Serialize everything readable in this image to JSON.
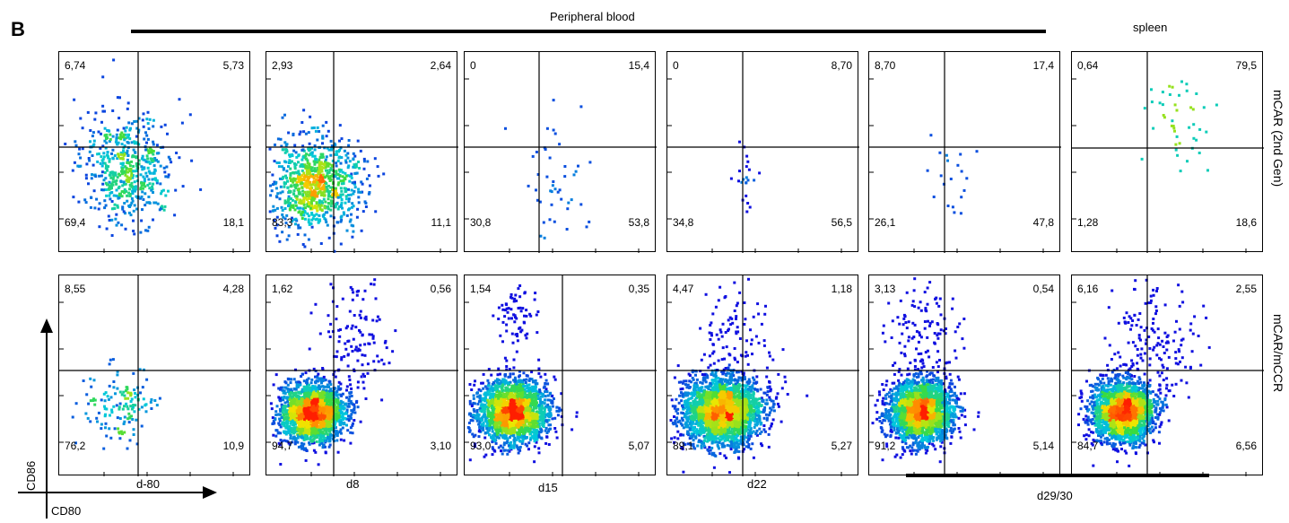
{
  "panel_letter": "B",
  "group_labels": {
    "peripheral_blood": "Peripheral blood",
    "spleen": "spleen"
  },
  "row_labels": [
    "mCAR (2nd Gen)",
    "mCAR/mCCR"
  ],
  "timepoints": [
    "d-80",
    "d8",
    "d15",
    "d22",
    "d29/30"
  ],
  "axes": {
    "y": "CD86",
    "x": "CD80"
  },
  "colors": {
    "sparse": "#1010e0",
    "mid": "#00d0d0",
    "dense": "#ff2000"
  },
  "chart_data": [
    {
      "type": "scatter",
      "row": "mCAR (2nd Gen)",
      "timepoint": "d-80",
      "quadrants": {
        "top_left": "6,74",
        "top_right": "5,73",
        "bottom_left": "69,4",
        "bottom_right": "18,1"
      }
    },
    {
      "type": "scatter",
      "row": "mCAR (2nd Gen)",
      "timepoint": "d8",
      "quadrants": {
        "top_left": "2,93",
        "top_right": "2,64",
        "bottom_left": "83,3",
        "bottom_right": "11,1"
      }
    },
    {
      "type": "scatter",
      "row": "mCAR (2nd Gen)",
      "timepoint": "d15",
      "quadrants": {
        "top_left": "0",
        "top_right": "15,4",
        "bottom_left": "30,8",
        "bottom_right": "53,8"
      }
    },
    {
      "type": "scatter",
      "row": "mCAR (2nd Gen)",
      "timepoint": "d22",
      "quadrants": {
        "top_left": "0",
        "top_right": "8,70",
        "bottom_left": "34,8",
        "bottom_right": "56,5"
      }
    },
    {
      "type": "scatter",
      "row": "mCAR (2nd Gen)",
      "timepoint": "d29/30",
      "quadrants": {
        "top_left": "8,70",
        "top_right": "17,4",
        "bottom_left": "26,1",
        "bottom_right": "47,8"
      }
    },
    {
      "type": "scatter",
      "row": "mCAR (2nd Gen)",
      "timepoint": "spleen",
      "quadrants": {
        "top_left": "0,64",
        "top_right": "79,5",
        "bottom_left": "1,28",
        "bottom_right": "18,6"
      }
    },
    {
      "type": "scatter",
      "row": "mCAR/mCCR",
      "timepoint": "d-80",
      "quadrants": {
        "top_left": "8,55",
        "top_right": "4,28",
        "bottom_left": "76,2",
        "bottom_right": "10,9"
      }
    },
    {
      "type": "scatter",
      "row": "mCAR/mCCR",
      "timepoint": "d8",
      "quadrants": {
        "top_left": "1,62",
        "top_right": "0,56",
        "bottom_left": "94,7",
        "bottom_right": "3,10"
      }
    },
    {
      "type": "scatter",
      "row": "mCAR/mCCR",
      "timepoint": "d15",
      "quadrants": {
        "top_left": "1,54",
        "top_right": "0,35",
        "bottom_left": "93,0",
        "bottom_right": "5,07"
      }
    },
    {
      "type": "scatter",
      "row": "mCAR/mCCR",
      "timepoint": "d22",
      "quadrants": {
        "top_left": "4,47",
        "top_right": "1,18",
        "bottom_left": "89,1",
        "bottom_right": "5,27"
      }
    },
    {
      "type": "scatter",
      "row": "mCAR/mCCR",
      "timepoint": "d29/30",
      "quadrants": {
        "top_left": "3,13",
        "top_right": "0,54",
        "bottom_left": "91,2",
        "bottom_right": "5,14"
      }
    },
    {
      "type": "scatter",
      "row": "mCAR/mCCR",
      "timepoint": "spleen",
      "quadrants": {
        "top_left": "6,16",
        "top_right": "2,55",
        "bottom_left": "84,7",
        "bottom_right": "6,56"
      }
    }
  ]
}
